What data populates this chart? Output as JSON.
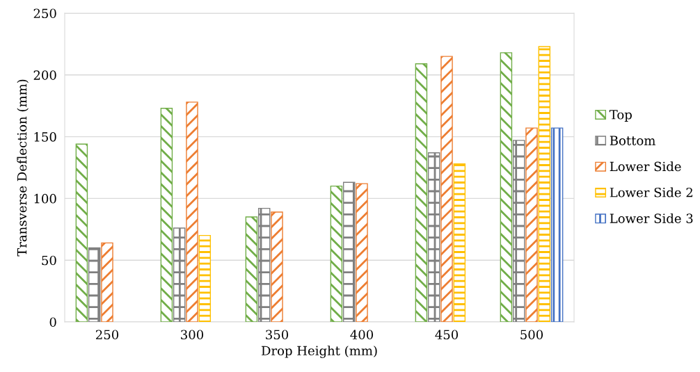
{
  "chart_data": {
    "type": "bar",
    "xlabel": "Drop Height (mm)",
    "ylabel": "Transverse Deflection (mm)",
    "categories": [
      "250",
      "300",
      "350",
      "400",
      "450",
      "500"
    ],
    "series": [
      {
        "name": "Top",
        "color": "#70ad47",
        "values": [
          144,
          173,
          85,
          110,
          209,
          218
        ]
      },
      {
        "name": "Bottom",
        "color": "#7f7f7f",
        "values": [
          60,
          76,
          92,
          113,
          137,
          147
        ]
      },
      {
        "name": "Lower Side",
        "color": "#ed7d31",
        "values": [
          64,
          178,
          89,
          112,
          215,
          157
        ]
      },
      {
        "name": "Lower Side 2",
        "color": "#ffc000",
        "values": [
          null,
          70,
          null,
          null,
          128,
          223
        ]
      },
      {
        "name": "Lower Side 3",
        "color": "#4472c4",
        "values": [
          null,
          null,
          null,
          null,
          null,
          157
        ]
      }
    ],
    "ylim": [
      0,
      250
    ],
    "yticks": [
      0,
      50,
      100,
      150,
      200,
      250
    ],
    "grid": "y",
    "legend": "right"
  }
}
